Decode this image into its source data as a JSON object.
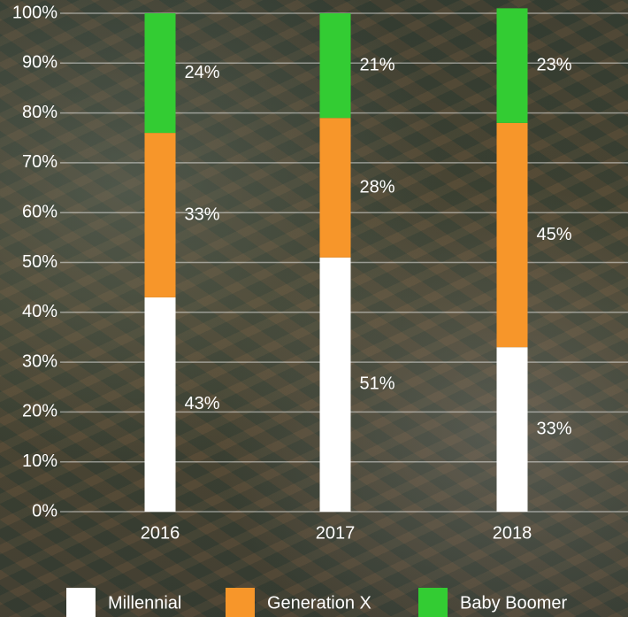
{
  "chart_data": {
    "type": "stacked-bar",
    "categories": [
      "2016",
      "2017",
      "2018"
    ],
    "series": [
      {
        "name": "Millennial",
        "color": "#ffffff",
        "values": [
          43,
          51,
          33
        ],
        "value_labels": [
          "43%",
          "51%",
          "33%"
        ]
      },
      {
        "name": "Generation X",
        "color": "#f7962a",
        "values": [
          33,
          28,
          45
        ],
        "value_labels": [
          "33%",
          "28%",
          "45%"
        ]
      },
      {
        "name": "Baby Boomer",
        "color": "#33cc33",
        "values": [
          24,
          21,
          23
        ],
        "value_labels": [
          "24%",
          "21%",
          "23%"
        ]
      }
    ],
    "ylim": [
      0,
      100
    ],
    "yticks": [
      {
        "value": 0,
        "label": "0%"
      },
      {
        "value": 10,
        "label": "10%"
      },
      {
        "value": 20,
        "label": "20%"
      },
      {
        "value": 30,
        "label": "30%"
      },
      {
        "value": 40,
        "label": "40%"
      },
      {
        "value": 50,
        "label": "50%"
      },
      {
        "value": 60,
        "label": "60%"
      },
      {
        "value": 70,
        "label": "70%"
      },
      {
        "value": 80,
        "label": "80%"
      },
      {
        "value": 90,
        "label": "90%"
      },
      {
        "value": 100,
        "label": "100%"
      }
    ],
    "grid": true,
    "legend": "bottom"
  }
}
